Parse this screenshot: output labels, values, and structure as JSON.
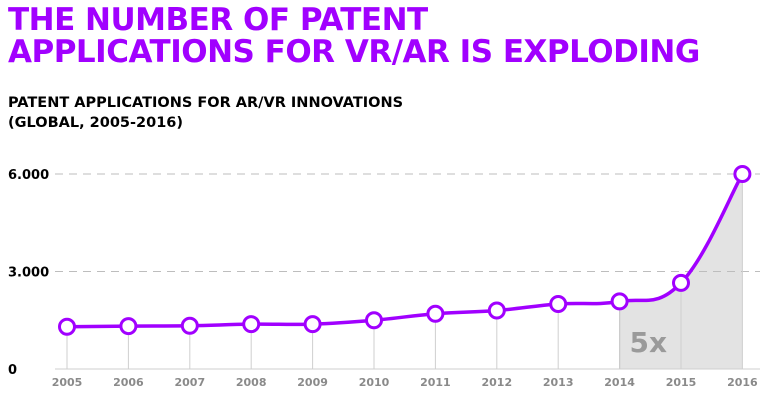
{
  "header": {
    "title_line1": "THE NUMBER OF PATENT",
    "title_line2": "APPLICATIONS FOR VR/AR IS EXPLODING",
    "subtitle_line1": "PATENT APPLICATIONS FOR AR/VR INNOVATIONS",
    "subtitle_line2": "(GLOBAL, 2005-2016)"
  },
  "colors": {
    "accent": "#a100ff",
    "highlight_fill": "#e3e3e3",
    "gridline": "#bdbdbd",
    "x_tick_text": "#8a8a8a",
    "annotation_text": "#9a9a9a"
  },
  "chart_data": {
    "type": "line",
    "title": "THE NUMBER OF PATENT APPLICATIONS FOR VR/AR IS EXPLODING",
    "subtitle": "PATENT APPLICATIONS FOR AR/VR INNOVATIONS (GLOBAL, 2005-2016)",
    "xlabel": "",
    "ylabel": "",
    "x": [
      "2005",
      "2006",
      "2007",
      "2008",
      "2009",
      "2010",
      "2011",
      "2012",
      "2013",
      "2014",
      "2015",
      "2016"
    ],
    "values": [
      1300,
      1320,
      1330,
      1380,
      1380,
      1500,
      1700,
      1800,
      2000,
      2080,
      2650,
      6000
    ],
    "ylim": [
      0,
      6000
    ],
    "y_ticks": [
      {
        "value": 0,
        "label": "0"
      },
      {
        "value": 3000,
        "label": "3.000"
      },
      {
        "value": 6000,
        "label": "6.000"
      }
    ],
    "grid": "dashed horizontal at 3.000 and 6.000",
    "highlight": {
      "from": "2014",
      "to": "2016",
      "label": "5x"
    },
    "legend": "none"
  }
}
